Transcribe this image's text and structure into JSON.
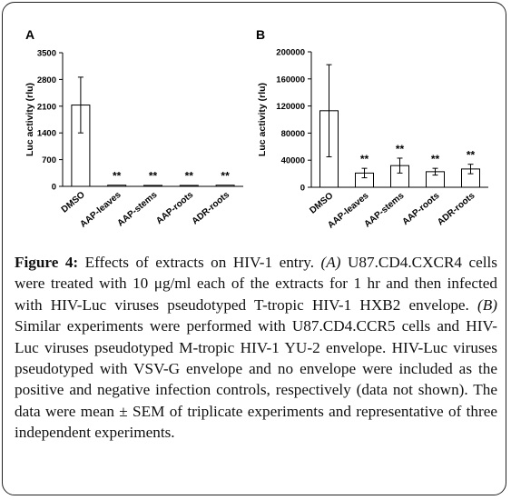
{
  "chart_data": [
    {
      "type": "bar",
      "panel_label": "A",
      "ylabel": "Luc activity (rlu)",
      "ylim": [
        0,
        3500
      ],
      "yticks": [
        0,
        700,
        1400,
        2100,
        2800,
        3500
      ],
      "ytick_labels": [
        "0",
        "700",
        "1400",
        "2100",
        "2800",
        "3500"
      ],
      "categories": [
        "DMSO",
        "AAP-leaves",
        "AAP-stems",
        "AAP-roots",
        "ADR-roots"
      ],
      "values": [
        2130,
        30,
        25,
        25,
        30
      ],
      "errors": [
        730,
        8,
        6,
        6,
        8
      ],
      "annotations": [
        "",
        "**",
        "**",
        "**",
        "**"
      ]
    },
    {
      "type": "bar",
      "panel_label": "B",
      "ylabel": "Luc activity (rlu)",
      "ylim": [
        0,
        200000
      ],
      "yticks": [
        0,
        40000,
        80000,
        120000,
        160000,
        200000
      ],
      "ytick_labels": [
        "0",
        "40000",
        "80000",
        "120000",
        "160000",
        "200000"
      ],
      "categories": [
        "DMSO",
        "AAP-leaves",
        "AAP-stems",
        "AAP-roots",
        "ADR-roots"
      ],
      "values": [
        113000,
        21000,
        32000,
        23000,
        27000
      ],
      "errors": [
        68000,
        7000,
        11000,
        5000,
        7000
      ],
      "annotations": [
        "",
        "**",
        "**",
        "**",
        "**"
      ]
    }
  ],
  "caption": {
    "label": "Figure 4:",
    "intro": " Effects of extracts on HIV-1 entry. ",
    "a_marker": "(A)",
    "a_text": " U87.CD4.CXCR4 cells were treated with 10 μg/ml each of the extracts for 1 hr and then infected with HIV-Luc viruses pseudotyped T-tropic HIV-1 HXB2 envelope. ",
    "b_marker": "(B)",
    "b_text": " Similar experiments were performed with U87.CD4.CCR5 cells and HIV-Luc viruses pseudotyped M-tropic HIV-1 YU-2 envelope. HIV-Luc viruses pseudotyped with VSV-G envelope and no envelope were included as the positive and negative infection controls, respectively (data not shown). The data were mean ± SEM of triplicate experiments and representative of three independent experiments."
  }
}
